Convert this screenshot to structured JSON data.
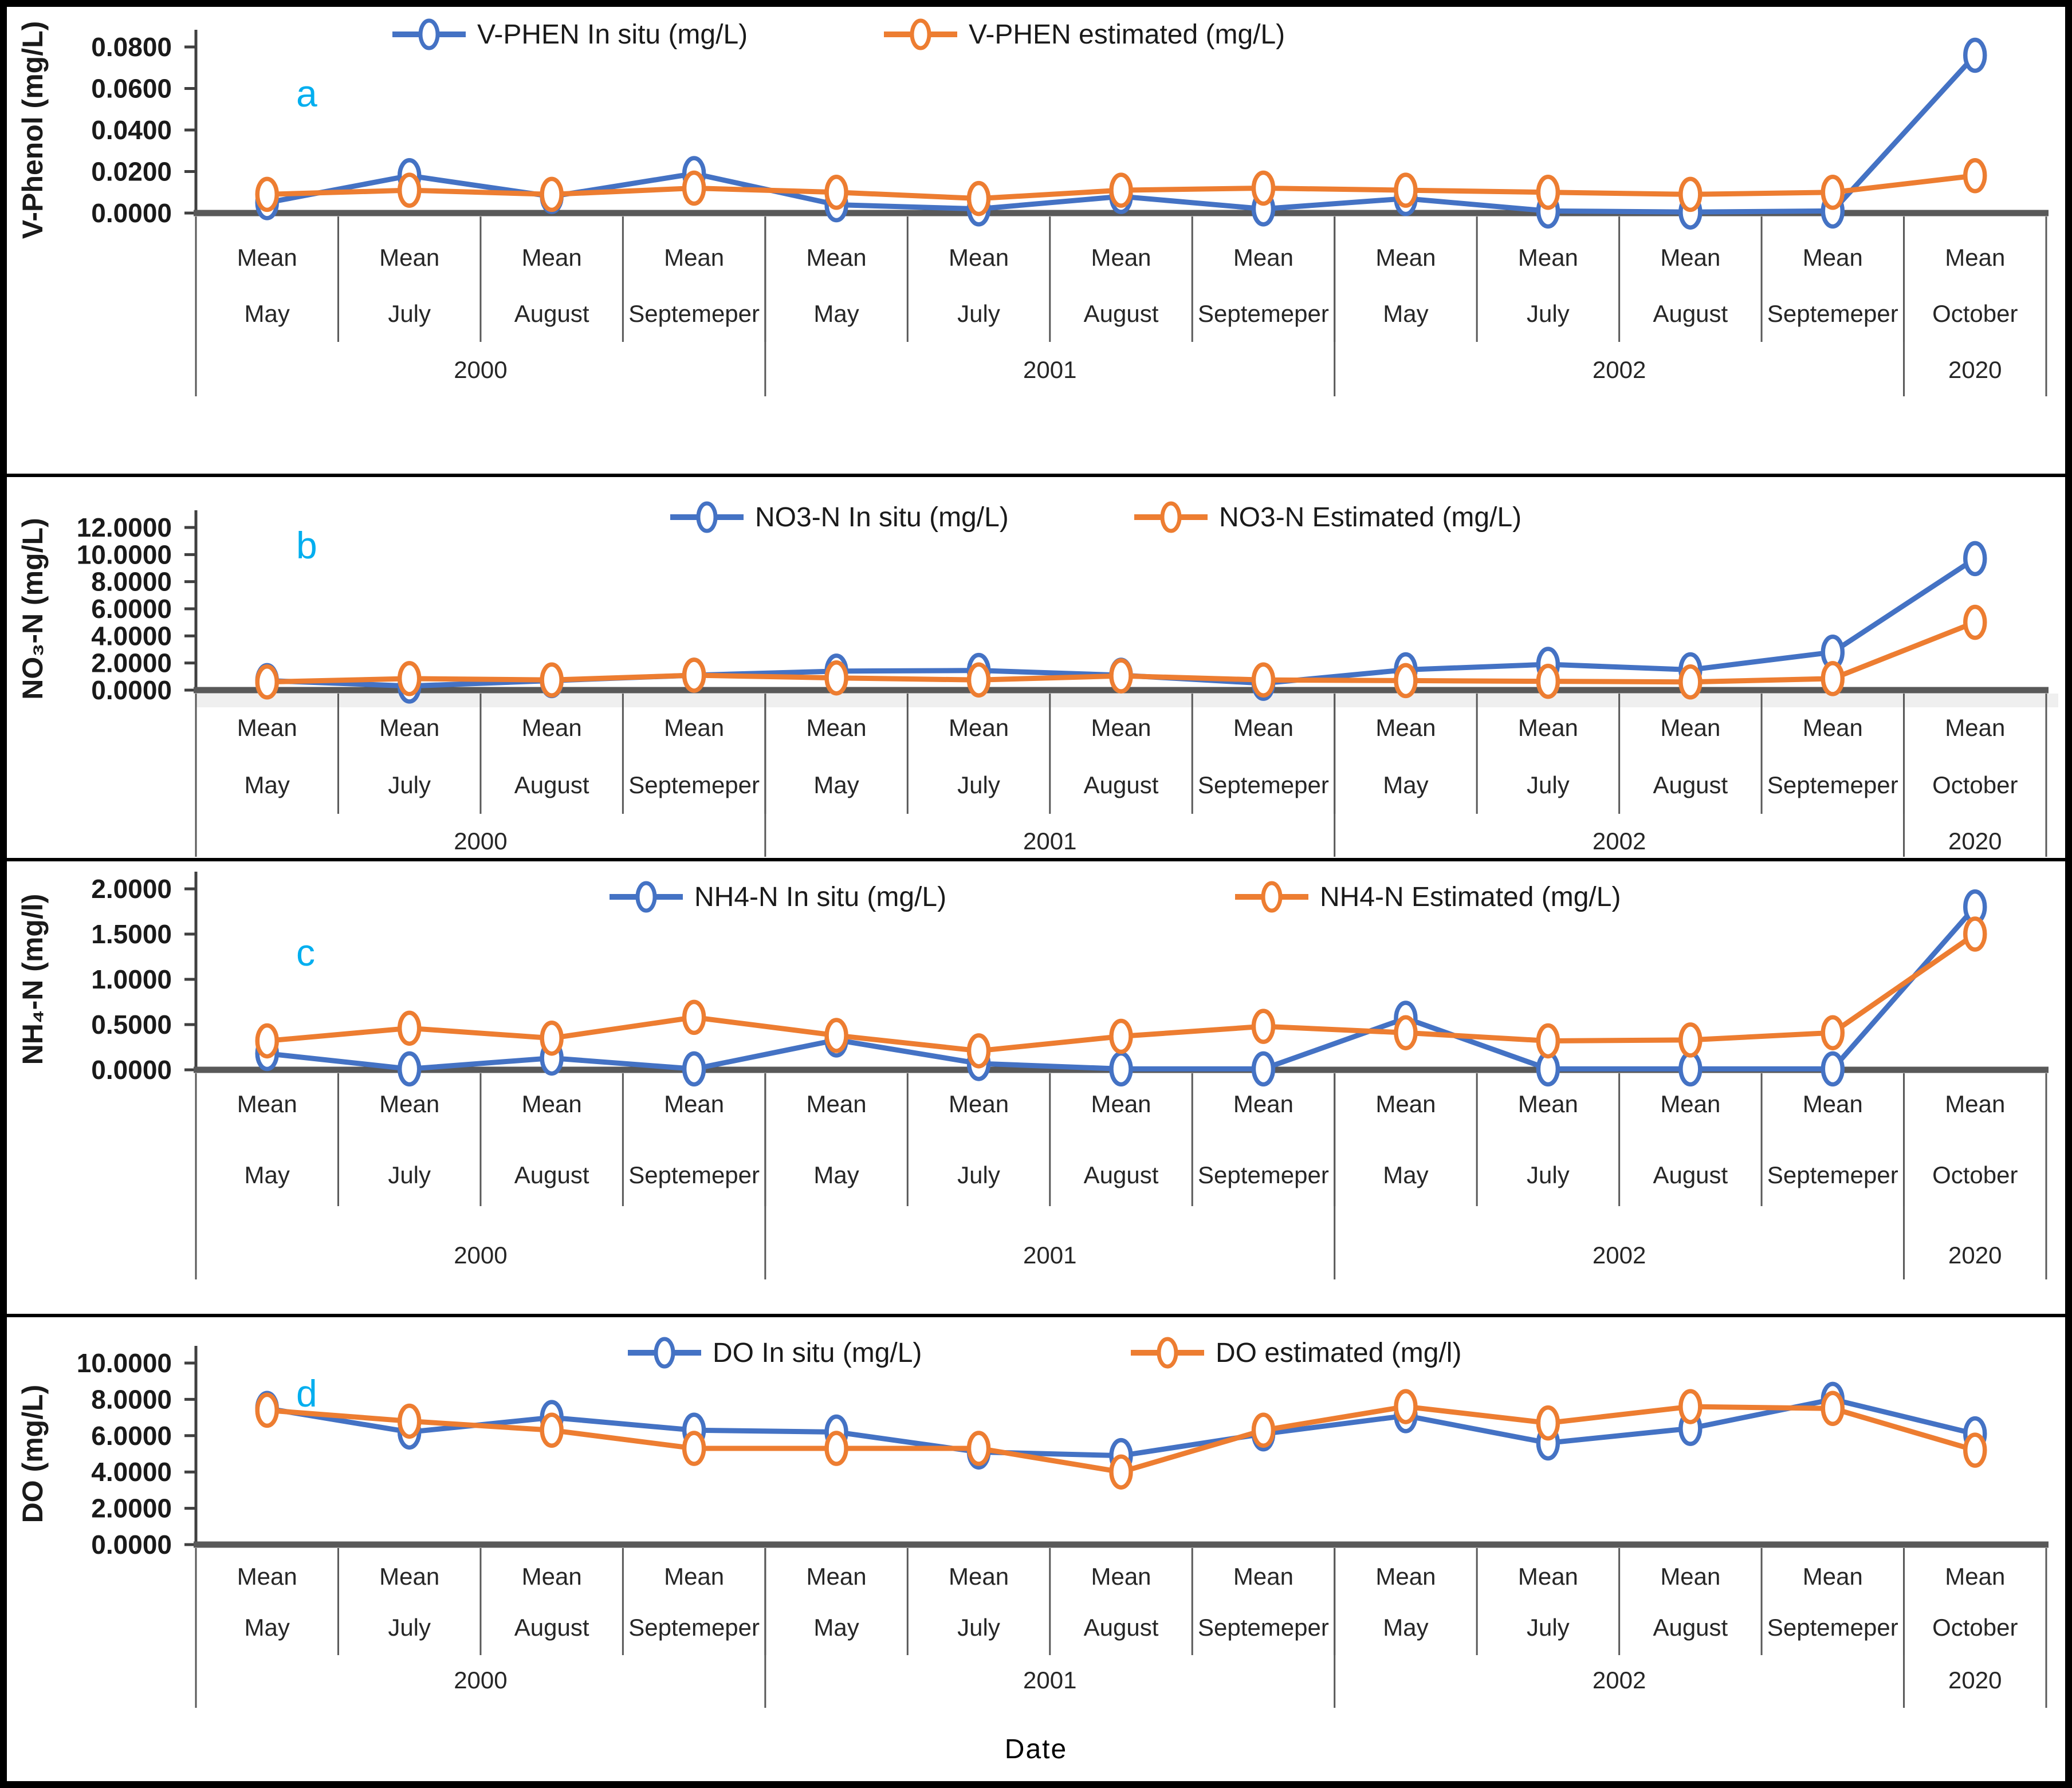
{
  "figure": {
    "x_axis_title": "Date",
    "mean_label": "Mean",
    "months": [
      "May",
      "July",
      "August",
      "Septemeper",
      "May",
      "July",
      "August",
      "Septemeper",
      "May",
      "July",
      "August",
      "Septemeper",
      "October"
    ],
    "year_groups": [
      {
        "label": "2000",
        "span": 4
      },
      {
        "label": "2001",
        "span": 4
      },
      {
        "label": "2002",
        "span": 4
      },
      {
        "label": "2020",
        "span": 1
      }
    ],
    "colors": {
      "in_situ": "#4472C4",
      "estimated": "#ED7D31",
      "panel_letter": "#00AEEF",
      "axis": "#595959"
    }
  },
  "chart_data": [
    {
      "type": "line",
      "panel_letter": "a",
      "ylabel": "V-Phenol (mg/L)",
      "ylim": [
        0,
        0.08
      ],
      "ytick_step": 0.02,
      "ytick_decimals": 4,
      "legend_position": "top",
      "grid": false,
      "categories": [
        "Mean May 2000",
        "Mean July 2000",
        "Mean August 2000",
        "Mean Septemeper 2000",
        "Mean May 2001",
        "Mean July 2001",
        "Mean August 2001",
        "Mean Septemeper 2001",
        "Mean May 2002",
        "Mean July 2002",
        "Mean August 2002",
        "Mean Septemeper 2002",
        "Mean October 2020"
      ],
      "series": [
        {
          "name": "V-PHEN In situ (mg/L)",
          "color": "#4472C4",
          "values": [
            0.005,
            0.018,
            0.008,
            0.019,
            0.004,
            0.002,
            0.008,
            0.002,
            0.007,
            0.001,
            0.0005,
            0.001,
            0.076
          ]
        },
        {
          "name": "V-PHEN estimated (mg/L)",
          "color": "#ED7D31",
          "values": [
            0.009,
            0.011,
            0.009,
            0.012,
            0.01,
            0.007,
            0.011,
            0.012,
            0.011,
            0.01,
            0.009,
            0.01,
            0.018
          ]
        }
      ]
    },
    {
      "type": "line",
      "panel_letter": "b",
      "ylabel": "NO₃-N (mg/L)",
      "ylim": [
        0,
        12
      ],
      "ytick_step": 2,
      "ytick_decimals": 4,
      "legend_position": "top",
      "grid": false,
      "categories": [
        "Mean May 2000",
        "Mean July 2000",
        "Mean August 2000",
        "Mean Septemeper 2000",
        "Mean May 2001",
        "Mean July 2001",
        "Mean August 2001",
        "Mean Septemeper 2001",
        "Mean May 2002",
        "Mean July 2002",
        "Mean August 2002",
        "Mean Septemeper 2002",
        "Mean October 2020"
      ],
      "series": [
        {
          "name": "NO3-N In situ (mg/L)",
          "color": "#4472C4",
          "values": [
            0.7,
            0.3,
            0.7,
            1.1,
            1.4,
            1.45,
            1.1,
            0.5,
            1.5,
            1.9,
            1.5,
            2.8,
            9.7
          ]
        },
        {
          "name": "NO3-N Estimated (mg/L)",
          "color": "#ED7D31",
          "values": [
            0.6,
            0.85,
            0.75,
            1.1,
            0.9,
            0.75,
            1.05,
            0.75,
            0.7,
            0.65,
            0.6,
            0.85,
            5.0
          ]
        }
      ]
    },
    {
      "type": "line",
      "panel_letter": "c",
      "ylabel": "NH₄-N (mg/l)",
      "ylim": [
        0,
        2
      ],
      "ytick_step": 0.5,
      "ytick_decimals": 4,
      "legend_position": "top",
      "grid": false,
      "categories": [
        "Mean May 2000",
        "Mean July 2000",
        "Mean August 2000",
        "Mean Septemeper 2000",
        "Mean May 2001",
        "Mean July 2001",
        "Mean August 2001",
        "Mean Septemeper 2001",
        "Mean May 2002",
        "Mean July 2002",
        "Mean August 2002",
        "Mean Septemeper 2002",
        "Mean October 2020"
      ],
      "series": [
        {
          "name": "NH4-N In situ (mg/L)",
          "color": "#4472C4",
          "values": [
            0.18,
            0.01,
            0.13,
            0.01,
            0.33,
            0.07,
            0.01,
            0.01,
            0.57,
            0.01,
            0.01,
            0.01,
            1.8
          ]
        },
        {
          "name": "NH4-N Estimated (mg/L)",
          "color": "#ED7D31",
          "values": [
            0.32,
            0.46,
            0.35,
            0.58,
            0.38,
            0.21,
            0.37,
            0.48,
            0.41,
            0.32,
            0.33,
            0.41,
            1.5
          ]
        }
      ]
    },
    {
      "type": "line",
      "panel_letter": "d",
      "ylabel": "DO (mg/L)",
      "ylim": [
        0,
        10
      ],
      "ytick_step": 2,
      "ytick_decimals": 4,
      "legend_position": "top",
      "grid": false,
      "categories": [
        "Mean May 2000",
        "Mean July 2000",
        "Mean August 2000",
        "Mean Septemeper 2000",
        "Mean May 2001",
        "Mean July 2001",
        "Mean August 2001",
        "Mean Septemeper 2001",
        "Mean May 2002",
        "Mean July 2002",
        "Mean August 2002",
        "Mean Septemeper 2002",
        "Mean October 2020"
      ],
      "series": [
        {
          "name": "DO In situ (mg/L)",
          "color": "#4472C4",
          "values": [
            7.5,
            6.2,
            7.0,
            6.3,
            6.2,
            5.1,
            4.9,
            6.1,
            7.1,
            5.6,
            6.4,
            8.0,
            6.1
          ]
        },
        {
          "name": "DO estimated (mg/l)",
          "color": "#ED7D31",
          "values": [
            7.4,
            6.8,
            6.3,
            5.3,
            5.3,
            5.3,
            4.0,
            6.3,
            7.6,
            6.7,
            7.6,
            7.5,
            5.2
          ]
        }
      ]
    }
  ]
}
